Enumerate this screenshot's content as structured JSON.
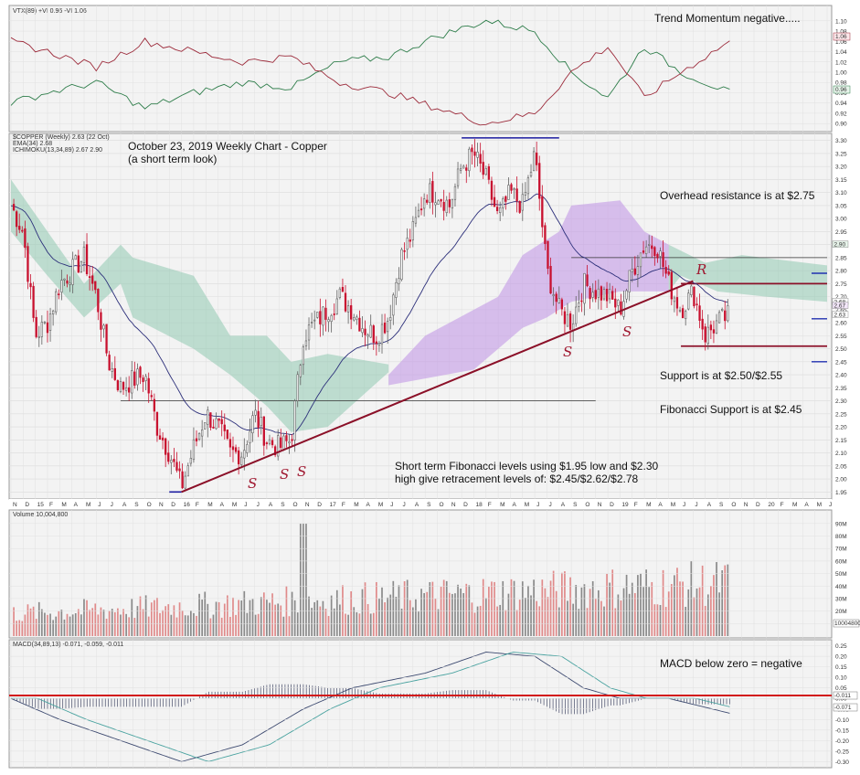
{
  "panels": {
    "vix": {
      "header": "VTX(89) +VI 0.96 -VI 1.06",
      "ticks": [
        "1.10",
        "1.08",
        "1.06",
        "1.04",
        "1.02",
        "1.00",
        "0.98",
        "0.96",
        "0.94",
        "0.92",
        "0.90"
      ],
      "tag_pos": "1.06",
      "tag_neg": "0.96"
    },
    "price": {
      "header_1": "$COPPER (Weekly) 2.63 (22 Oct)",
      "header_2": "EMA(34) 2.68",
      "header_3": "ICHIMOKU(13,34,89) 2.67 2.90",
      "ticks": [
        "3.30",
        "3.25",
        "3.20",
        "3.15",
        "3.10",
        "3.05",
        "3.00",
        "2.95",
        "2.90",
        "2.85",
        "2.80",
        "2.75",
        "2.70",
        "2.65",
        "2.60",
        "2.55",
        "2.50",
        "2.45",
        "2.40",
        "2.35",
        "2.30",
        "2.25",
        "2.20",
        "2.15",
        "2.10",
        "2.05",
        "2.00",
        "1.95"
      ],
      "tag_top": "2.90",
      "tag_ema": "2.68",
      "tag_mid": "2.67",
      "tag_last": "2.63"
    },
    "volume": {
      "header": "Volume 10,004,800",
      "ticks": [
        "90M",
        "80M",
        "70M",
        "60M",
        "50M",
        "40M",
        "30M",
        "20M",
        "10M"
      ],
      "tag": "10004800"
    },
    "macd": {
      "header": "MACD(34,89,13) -0.071, -0.059, -0.011",
      "ticks": [
        "0.25",
        "0.20",
        "0.15",
        "0.10",
        "0.05",
        "0.00",
        "-0.05",
        "-0.10",
        "-0.15",
        "-0.20",
        "-0.25",
        "-0.30"
      ],
      "tag_1": "-0.011",
      "tag_2": "-0.071"
    }
  },
  "date_labels": [
    "N",
    "D",
    "15",
    "F",
    "M",
    "A",
    "M",
    "J",
    "J",
    "A",
    "S",
    "O",
    "N",
    "D",
    "16",
    "F",
    "M",
    "A",
    "M",
    "J",
    "J",
    "A",
    "S",
    "O",
    "N",
    "D",
    "17",
    "F",
    "M",
    "A",
    "M",
    "J",
    "J",
    "A",
    "S",
    "O",
    "N",
    "D",
    "18",
    "F",
    "M",
    "A",
    "M",
    "J",
    "J",
    "A",
    "S",
    "O",
    "N",
    "D",
    "19",
    "F",
    "M",
    "A",
    "M",
    "J",
    "J",
    "A",
    "S",
    "O",
    "N",
    "D",
    "20",
    "F",
    "M",
    "A",
    "M",
    "J"
  ],
  "annotations": {
    "title_1": "October 23, 2019 Weekly Chart - Copper",
    "title_2": "(a short term look)",
    "trend": "Trend Momentum negative.....",
    "resistance": "Overhead resistance is at $2.75",
    "support": "Support is at $2.50/$2.55",
    "fib_support": "Fibonacci Support is at $2.45",
    "fib_1": "Short term Fibonacci levels using $1.95 low and $2.30",
    "fib_2": "high give retracement levels of: $2.45/$2.62/$2.78",
    "macd": "MACD below zero = negative",
    "marker_s": "S",
    "marker_r": "R"
  },
  "colors": {
    "up": "#606060",
    "down": "#c8102e",
    "ema": "#2c2f7a",
    "kumo_green": "#8fc8b0",
    "kumo_purple": "#c39ae6",
    "trend_line": "#8b1028",
    "hline_blue": "#1c1ca0",
    "zero_line": "#d21a1a",
    "vol_up": "#8a8a8a",
    "vol_down": "#e08a8a"
  },
  "chart_data": {
    "type": "candlestick",
    "title": "October 23, 2019 Weekly Chart - Copper",
    "period": "weekly",
    "x_range": [
      "2014-11",
      "2020-06"
    ],
    "ylim": [
      1.93,
      3.32
    ],
    "last_close": 2.63,
    "ema34": 2.68,
    "price_path": [
      [
        "2014-11",
        3.05
      ],
      [
        "2014-12",
        2.95
      ],
      [
        "2015-01",
        2.55
      ],
      [
        "2015-02",
        2.6
      ],
      [
        "2015-03",
        2.75
      ],
      [
        "2015-04",
        2.8
      ],
      [
        "2015-05",
        2.85
      ],
      [
        "2015-06",
        2.7
      ],
      [
        "2015-07",
        2.45
      ],
      [
        "2015-08",
        2.35
      ],
      [
        "2015-09",
        2.38
      ],
      [
        "2015-10",
        2.4
      ],
      [
        "2015-11",
        2.2
      ],
      [
        "2015-12",
        2.1
      ],
      [
        "2016-01",
        1.97
      ],
      [
        "2016-02",
        2.12
      ],
      [
        "2016-03",
        2.25
      ],
      [
        "2016-04",
        2.2
      ],
      [
        "2016-05",
        2.1
      ],
      [
        "2016-06",
        2.1
      ],
      [
        "2016-07",
        2.25
      ],
      [
        "2016-08",
        2.15
      ],
      [
        "2016-09",
        2.12
      ],
      [
        "2016-10",
        2.15
      ],
      [
        "2016-11",
        2.55
      ],
      [
        "2016-12",
        2.6
      ],
      [
        "2017-01",
        2.65
      ],
      [
        "2017-02",
        2.7
      ],
      [
        "2017-03",
        2.65
      ],
      [
        "2017-04",
        2.58
      ],
      [
        "2017-05",
        2.55
      ],
      [
        "2017-06",
        2.62
      ],
      [
        "2017-07",
        2.85
      ],
      [
        "2017-08",
        2.95
      ],
      [
        "2017-09",
        3.1
      ],
      [
        "2017-10",
        3.1
      ],
      [
        "2017-11",
        3.05
      ],
      [
        "2017-12",
        3.2
      ],
      [
        "2018-01",
        3.25
      ],
      [
        "2018-02",
        3.15
      ],
      [
        "2018-03",
        3.0
      ],
      [
        "2018-04",
        3.1
      ],
      [
        "2018-05",
        3.05
      ],
      [
        "2018-06",
        3.25
      ],
      [
        "2018-07",
        2.8
      ],
      [
        "2018-08",
        2.65
      ],
      [
        "2018-09",
        2.6
      ],
      [
        "2018-10",
        2.75
      ],
      [
        "2018-11",
        2.72
      ],
      [
        "2018-12",
        2.7
      ],
      [
        "2019-01",
        2.65
      ],
      [
        "2019-02",
        2.8
      ],
      [
        "2019-03",
        2.9
      ],
      [
        "2019-04",
        2.9
      ],
      [
        "2019-05",
        2.75
      ],
      [
        "2019-06",
        2.65
      ],
      [
        "2019-07",
        2.72
      ],
      [
        "2019-08",
        2.55
      ],
      [
        "2019-09",
        2.6
      ],
      [
        "2019-10",
        2.63
      ]
    ],
    "horizontal_levels": [
      {
        "value": 3.31,
        "from": "2017-12",
        "to": "2018-08"
      },
      {
        "value": 2.3,
        "from": "2015-08",
        "to": "2018-11"
      },
      {
        "value": 2.85,
        "from": "2018-09",
        "to": "2020-06"
      },
      {
        "value": 2.75,
        "from": "2019-06",
        "to": "2020-06"
      },
      {
        "value": 2.51,
        "from": "2019-06",
        "to": "2020-06"
      },
      {
        "value": 1.95,
        "from": "2015-12",
        "to": "2016-01"
      }
    ],
    "trend_line": {
      "from": [
        "2016-01",
        1.95
      ],
      "to": [
        "2019-07",
        2.76
      ]
    },
    "volume_ylim": [
      0,
      95000000
    ],
    "macd_ylim": [
      -0.32,
      0.27
    ],
    "macd_path": [
      [
        "2014-11",
        0.0
      ],
      [
        "2015-03",
        -0.1
      ],
      [
        "2015-08",
        -0.2
      ],
      [
        "2016-01",
        -0.3
      ],
      [
        "2016-06",
        -0.22
      ],
      [
        "2016-11",
        -0.05
      ],
      [
        "2017-03",
        0.05
      ],
      [
        "2017-09",
        0.12
      ],
      [
        "2018-02",
        0.22
      ],
      [
        "2018-06",
        0.2
      ],
      [
        "2018-10",
        0.05
      ],
      [
        "2019-01",
        0.0
      ],
      [
        "2019-05",
        0.0
      ],
      [
        "2019-10",
        -0.07
      ]
    ]
  }
}
